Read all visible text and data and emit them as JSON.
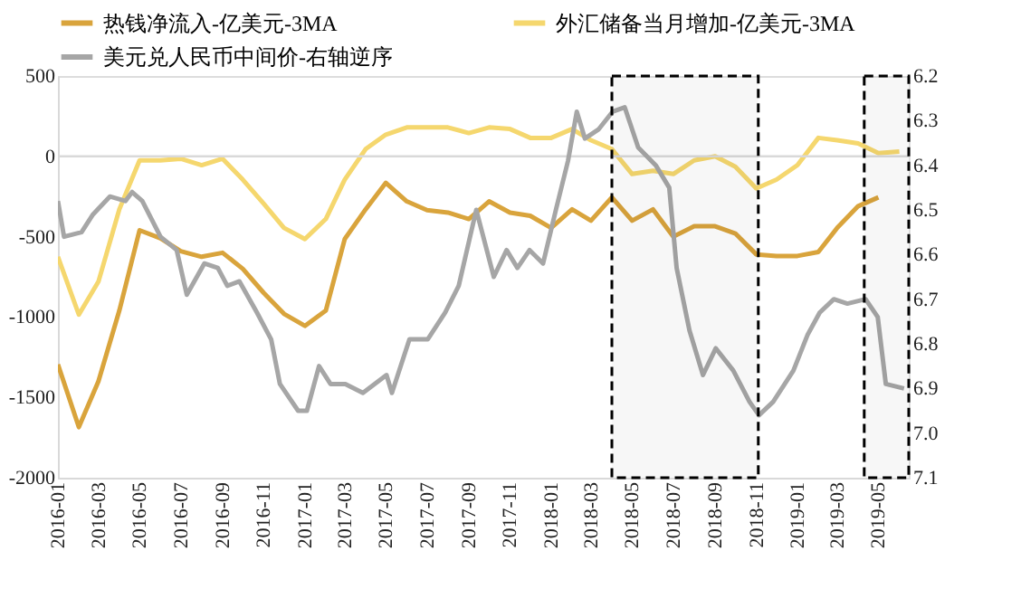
{
  "chart_data": {
    "type": "line",
    "legend": "top",
    "xlim": [
      "2016-01",
      "2019-06-15"
    ],
    "xticks": [
      "2016-01",
      "2016-03",
      "2016-05",
      "2016-07",
      "2016-09",
      "2016-11",
      "2017-01",
      "2017-03",
      "2017-05",
      "2017-07",
      "2017-09",
      "2017-11",
      "2018-01",
      "2018-03",
      "2018-05",
      "2018-07",
      "2018-09",
      "2018-11",
      "2019-01",
      "2019-03",
      "2019-05"
    ],
    "ylim": [
      -2000,
      500
    ],
    "yticks": [
      -2000,
      -1500,
      -1000,
      -500,
      0,
      500
    ],
    "y2lim": [
      7.1,
      6.2
    ],
    "y2ticks": [
      {
        "value": 7.1,
        "label": "7.1"
      },
      {
        "value": 7.0,
        "label": "7.0"
      },
      6.9,
      6.8,
      6.7,
      6.6,
      6.5,
      6.4,
      6.3,
      6.2
    ],
    "ref_lines": [
      {
        "axis": "y",
        "value": 0,
        "color": "#d9d9d9"
      }
    ],
    "bands": [
      {
        "axis": "x",
        "from": "2018-04-01",
        "to": "2018-11-04",
        "color": "#000000"
      },
      {
        "axis": "x",
        "from": "2019-04-10",
        "to": "2019-06-15",
        "color": "#000000"
      }
    ],
    "series": [
      {
        "name": "热钱净流入-亿美元-3MA",
        "color": "#d9a43c",
        "x": [
          "2016-01",
          "2016-02",
          "2016-03",
          "2016-04",
          "2016-05",
          "2016-06",
          "2016-07",
          "2016-08",
          "2016-09",
          "2016-10",
          "2016-11",
          "2016-12",
          "2017-01",
          "2017-02",
          "2017-03",
          "2017-04",
          "2017-05",
          "2017-06",
          "2017-07",
          "2017-08",
          "2017-09",
          "2017-10",
          "2017-11",
          "2017-12",
          "2018-01",
          "2018-02",
          "2018-03",
          "2018-04",
          "2018-05",
          "2018-06",
          "2018-07",
          "2018-08",
          "2018-09",
          "2018-10",
          "2018-11",
          "2018-12",
          "2019-01",
          "2019-02",
          "2019-03",
          "2019-04",
          "2019-05"
        ],
        "values": [
          -1295,
          -1685,
          -1400,
          -960,
          -460,
          -510,
          -590,
          -625,
          -600,
          -700,
          -850,
          -980,
          -1055,
          -960,
          -515,
          -330,
          -165,
          -280,
          -335,
          -350,
          -390,
          -280,
          -350,
          -370,
          -445,
          -330,
          -400,
          -255,
          -400,
          -330,
          -500,
          -435,
          -435,
          -480,
          -610,
          -620,
          -620,
          -595,
          -445,
          -310,
          -255
        ]
      },
      {
        "name": "外汇储备当月增加-亿美元-3MA",
        "color": "#f5d76e",
        "x": [
          "2016-01",
          "2016-02",
          "2016-03",
          "2016-04",
          "2016-05",
          "2016-06",
          "2016-07",
          "2016-08",
          "2016-09",
          "2016-10",
          "2016-11",
          "2016-12",
          "2017-01",
          "2017-02",
          "2017-03",
          "2017-04",
          "2017-05",
          "2017-06",
          "2017-07",
          "2017-08",
          "2017-09",
          "2017-10",
          "2017-11",
          "2017-12",
          "2018-01",
          "2018-02",
          "2018-03",
          "2018-04",
          "2018-05",
          "2018-06",
          "2018-07",
          "2018-08",
          "2018-09",
          "2018-10",
          "2018-11",
          "2018-12",
          "2019-01",
          "2019-02",
          "2019-03",
          "2019-04",
          "2019-05",
          "2019-06"
        ],
        "values": [
          -625,
          -985,
          -780,
          -330,
          -25,
          -25,
          -15,
          -55,
          -15,
          -145,
          -295,
          -445,
          -515,
          -390,
          -145,
          45,
          135,
          180,
          180,
          180,
          145,
          180,
          170,
          115,
          115,
          170,
          100,
          45,
          -110,
          -90,
          -110,
          -25,
          0,
          -65,
          -200,
          -145,
          -55,
          115,
          100,
          80,
          20,
          30
        ]
      },
      {
        "name": "美元兑人民币中间价-右轴逆序",
        "color": "#a6a6a6",
        "axis": "y2",
        "x": [
          "2016-01-01",
          "2016-01-10",
          "2016-02-05",
          "2016-02-22",
          "2016-03-18",
          "2016-04-10",
          "2016-04-20",
          "2016-05-05",
          "2016-06-01",
          "2016-06-25",
          "2016-07-10",
          "2016-08-05",
          "2016-08-25",
          "2016-09-08",
          "2016-09-26",
          "2016-10-22",
          "2016-11-12",
          "2016-11-25",
          "2016-12-22",
          "2017-01-04",
          "2017-01-22",
          "2017-02-08",
          "2017-03-02",
          "2017-03-28",
          "2017-05-02",
          "2017-05-10",
          "2017-06-05",
          "2017-07-02",
          "2017-07-28",
          "2017-08-17",
          "2017-09-12",
          "2017-10-08",
          "2017-10-27",
          "2017-11-12",
          "2017-11-30",
          "2017-12-20",
          "2018-01-08",
          "2018-01-26",
          "2018-02-08",
          "2018-02-20",
          "2018-03-12",
          "2018-04-02",
          "2018-04-20",
          "2018-05-10",
          "2018-06-05",
          "2018-06-25",
          "2018-07-06",
          "2018-07-25",
          "2018-08-14",
          "2018-09-02",
          "2018-09-28",
          "2018-10-22",
          "2018-11-05",
          "2018-11-26",
          "2018-12-26",
          "2019-01-16",
          "2019-02-03",
          "2019-02-24",
          "2019-03-16",
          "2019-04-12",
          "2019-04-30",
          "2019-05-12",
          "2019-06-08"
        ],
        "values": [
          6.48,
          6.56,
          6.55,
          6.51,
          6.47,
          6.48,
          6.46,
          6.48,
          6.56,
          6.59,
          6.69,
          6.62,
          6.63,
          6.67,
          6.66,
          6.73,
          6.79,
          6.89,
          6.95,
          6.95,
          6.85,
          6.89,
          6.89,
          6.91,
          6.87,
          6.91,
          6.79,
          6.79,
          6.73,
          6.67,
          6.5,
          6.65,
          6.59,
          6.63,
          6.59,
          6.62,
          6.5,
          6.39,
          6.28,
          6.34,
          6.32,
          6.28,
          6.27,
          6.36,
          6.4,
          6.45,
          6.63,
          6.77,
          6.87,
          6.81,
          6.86,
          6.93,
          6.96,
          6.93,
          6.86,
          6.78,
          6.73,
          6.7,
          6.71,
          6.7,
          6.74,
          6.89,
          6.9
        ]
      }
    ]
  }
}
